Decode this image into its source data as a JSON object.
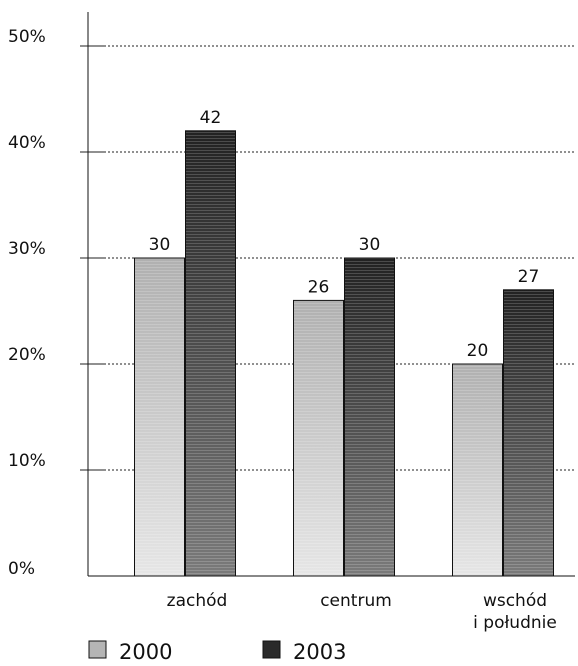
{
  "chart_data": {
    "type": "bar",
    "categories": [
      [
        "zachód"
      ],
      [
        "centrum"
      ],
      [
        "wschód",
        "i południe"
      ]
    ],
    "series": [
      {
        "name": "2000",
        "values": [
          30,
          26,
          20
        ],
        "color": "#b5b5b5",
        "gradient_light": "#e6e6e6",
        "gradient_dark": "#b0b0b0"
      },
      {
        "name": "2003",
        "values": [
          42,
          30,
          27
        ],
        "color": "#2a2a2a",
        "gradient_light": "#7a7a7a",
        "gradient_dark": "#222222"
      }
    ],
    "data_labels": [
      [
        "30",
        "26",
        "20"
      ],
      [
        "42",
        "30",
        "27"
      ]
    ],
    "yticks": [
      0,
      10,
      20,
      30,
      40,
      50
    ],
    "ytick_labels": [
      "0%",
      "10%",
      "20%",
      "30%",
      "40%",
      "50%"
    ],
    "ylim": [
      0,
      50
    ],
    "grid": true,
    "grid_style": "dotted",
    "legend_position": "bottom-left",
    "title": "",
    "xlabel": "",
    "ylabel": ""
  }
}
